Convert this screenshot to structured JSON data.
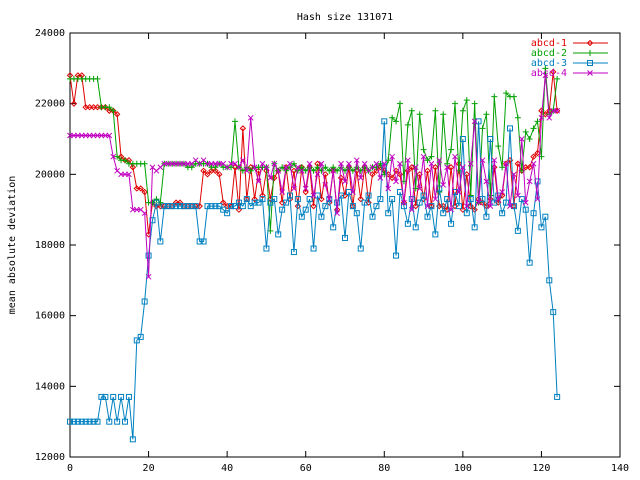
{
  "chart_data": {
    "type": "line",
    "title": "Hash size 131071",
    "y_label": "mean absolute deviation",
    "x": [
      0,
      1,
      2,
      3,
      4,
      5,
      6,
      7,
      8,
      9,
      10,
      11,
      12,
      13,
      14,
      15,
      16,
      17,
      18,
      19,
      20,
      21,
      22,
      23,
      24,
      25,
      26,
      27,
      28,
      29,
      30,
      31,
      32,
      33,
      34,
      35,
      36,
      37,
      38,
      39,
      40,
      41,
      42,
      43,
      44,
      45,
      46,
      47,
      48,
      49,
      50,
      51,
      52,
      53,
      54,
      55,
      56,
      57,
      58,
      59,
      60,
      61,
      62,
      63,
      64,
      65,
      66,
      67,
      68,
      69,
      70,
      71,
      72,
      73,
      74,
      75,
      76,
      77,
      78,
      79,
      80,
      81,
      82,
      83,
      84,
      85,
      86,
      87,
      88,
      89,
      90,
      91,
      92,
      93,
      94,
      95,
      96,
      97,
      98,
      99,
      100,
      101,
      102,
      103,
      104,
      105,
      106,
      107,
      108,
      109,
      110,
      111,
      112,
      113,
      114,
      115,
      116,
      117,
      118,
      119,
      120,
      121,
      122,
      123,
      124
    ],
    "series": [
      {
        "name": "abcd-1",
        "color": "#e00000",
        "marker": "diamond",
        "values": [
          22800,
          22000,
          22800,
          22800,
          21900,
          21900,
          21900,
          21900,
          21900,
          21900,
          21800,
          21800,
          21700,
          20500,
          20400,
          20400,
          20200,
          19600,
          19600,
          19500,
          18300,
          19200,
          19100,
          19100,
          19100,
          19100,
          19100,
          19200,
          19200,
          19100,
          19100,
          19100,
          19100,
          19100,
          20100,
          20000,
          20100,
          20100,
          20000,
          19200,
          19100,
          19100,
          20200,
          19000,
          21300,
          19300,
          20200,
          19300,
          20100,
          19400,
          20100,
          19300,
          19900,
          20100,
          19200,
          20200,
          19300,
          20100,
          19100,
          20200,
          19500,
          20200,
          19100,
          20300,
          19300,
          20000,
          19200,
          20100,
          19000,
          19900,
          19400,
          20200,
          19100,
          20100,
          19300,
          20200,
          19200,
          20000,
          20100,
          20200,
          20100,
          20000,
          19900,
          20100,
          20000,
          19200,
          20100,
          20200,
          19100,
          20000,
          19300,
          20100,
          19100,
          20200,
          19100,
          19100,
          19000,
          20200,
          19100,
          20300,
          19000,
          20000,
          19100,
          19000,
          19300,
          19200,
          19100,
          19300,
          20200,
          19200,
          19400,
          20300,
          20400,
          19100,
          20300,
          20100,
          20200,
          20200,
          20500,
          20600,
          21800,
          21700,
          21800,
          22900,
          21800
        ]
      },
      {
        "name": "abcd-2",
        "color": "#00a000",
        "marker": "plus",
        "values": [
          22700,
          22700,
          22700,
          22700,
          22700,
          22700,
          22700,
          22700,
          21900,
          21900,
          21900,
          21800,
          20500,
          20400,
          20400,
          20300,
          20300,
          20300,
          20300,
          20300,
          19200,
          19200,
          19300,
          19200,
          20300,
          20300,
          20300,
          20300,
          20300,
          20300,
          20200,
          20200,
          20300,
          20300,
          20300,
          20300,
          20200,
          20200,
          20300,
          20200,
          20200,
          20200,
          21500,
          20200,
          20100,
          20200,
          20100,
          20200,
          20200,
          20200,
          20200,
          18400,
          20300,
          20100,
          20200,
          20100,
          20200,
          20300,
          20100,
          20200,
          20100,
          20200,
          20100,
          20200,
          20100,
          20200,
          20100,
          20200,
          20100,
          20200,
          20100,
          20200,
          20100,
          20200,
          20100,
          20200,
          20100,
          20200,
          20200,
          20300,
          20000,
          20400,
          21600,
          21500,
          22000,
          19800,
          21400,
          21800,
          19600,
          21700,
          20700,
          20400,
          20500,
          21800,
          19500,
          21700,
          20300,
          20700,
          22000,
          20100,
          21800,
          22100,
          19400,
          22000,
          19200,
          21300,
          21700,
          19400,
          22200,
          20800,
          20200,
          22300,
          22200,
          22200,
          21600,
          20100,
          21200,
          21000,
          21300,
          21500,
          20500,
          23000,
          21700,
          21800,
          22700
        ]
      },
      {
        "name": "abcd-3",
        "color": "#0080c0",
        "marker": "square",
        "values": [
          13000,
          13000,
          13000,
          13000,
          13000,
          13000,
          13000,
          13000,
          13700,
          13700,
          13000,
          13700,
          13000,
          13700,
          13000,
          13700,
          12500,
          15300,
          15400,
          16400,
          17700,
          18700,
          19200,
          18100,
          19100,
          19100,
          19100,
          19100,
          19100,
          19100,
          19100,
          19100,
          19100,
          18100,
          18100,
          19100,
          19100,
          19100,
          19100,
          19000,
          18900,
          19100,
          19100,
          19200,
          19100,
          19300,
          19100,
          19200,
          19200,
          19300,
          17900,
          19200,
          19300,
          18300,
          19000,
          19200,
          19400,
          17800,
          19300,
          18800,
          19000,
          19300,
          17900,
          19400,
          18800,
          19100,
          19300,
          18500,
          19200,
          19400,
          18200,
          19500,
          19100,
          18900,
          17900,
          19200,
          19400,
          18800,
          19100,
          19300,
          21500,
          18900,
          19300,
          17700,
          19500,
          19100,
          18600,
          19300,
          18500,
          19200,
          19400,
          18800,
          19100,
          18300,
          19600,
          18900,
          19300,
          18600,
          19500,
          19100,
          21000,
          18900,
          19300,
          18500,
          21500,
          19300,
          18800,
          21000,
          19200,
          19400,
          18900,
          19200,
          21300,
          19100,
          18400,
          19300,
          19000,
          17500,
          18900,
          19800,
          18500,
          18800,
          17000,
          16100,
          13700
        ]
      },
      {
        "name": "abcd-4",
        "color": "#c000c0",
        "marker": "cross",
        "values": [
          21100,
          21100,
          21100,
          21100,
          21100,
          21100,
          21100,
          21100,
          21100,
          21100,
          21100,
          20500,
          20100,
          20000,
          20000,
          20000,
          19000,
          19000,
          19000,
          18900,
          17100,
          20200,
          20100,
          20200,
          20300,
          20300,
          20300,
          20300,
          20300,
          20300,
          20300,
          20300,
          20400,
          20300,
          20400,
          20300,
          20300,
          20300,
          20300,
          20300,
          20200,
          20300,
          20300,
          20200,
          20400,
          20100,
          21600,
          20200,
          19800,
          20300,
          20200,
          19900,
          20300,
          20100,
          19500,
          20200,
          20300,
          19600,
          20200,
          20100,
          19600,
          20300,
          19400,
          20000,
          20300,
          19700,
          19300,
          20100,
          18900,
          20300,
          19800,
          20300,
          19500,
          20400,
          19900,
          20300,
          20100,
          20200,
          20300,
          19900,
          20300,
          19600,
          20500,
          19800,
          20300,
          19200,
          20400,
          19000,
          20200,
          19600,
          20500,
          19100,
          20300,
          19300,
          20400,
          19700,
          20200,
          19000,
          20500,
          19500,
          20200,
          19100,
          20300,
          21500,
          19200,
          20400,
          19800,
          19100,
          20400,
          19300,
          19500,
          20300,
          19100,
          20000,
          19400,
          21000,
          19200,
          19800,
          20300,
          19300,
          21600,
          22800,
          21600,
          21800,
          21800
        ]
      }
    ],
    "xlim": [
      0,
      140
    ],
    "xticks": [
      0,
      20,
      40,
      60,
      80,
      100,
      120,
      140
    ],
    "ylim": [
      12000,
      24000
    ],
    "yticks": [
      12000,
      14000,
      16000,
      18000,
      20000,
      22000,
      24000
    ],
    "legend": "upper right"
  }
}
